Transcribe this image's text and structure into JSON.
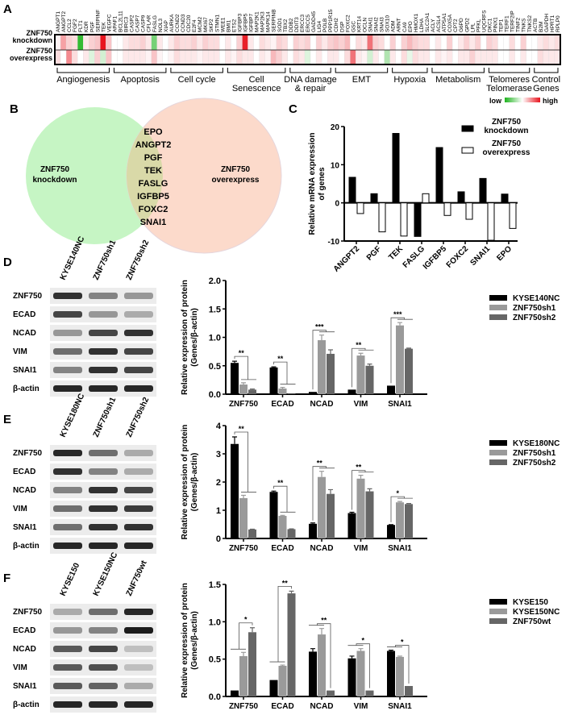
{
  "panels": {
    "a": "A",
    "b": "B",
    "c": "C",
    "d": "D",
    "e": "E",
    "f": "F"
  },
  "heatmap": {
    "row_label_lines": [
      [
        "ZNF750",
        "knockdown"
      ],
      [
        "ZNF750",
        "overexpress"
      ]
    ],
    "genes": [
      "ANGPT1",
      "ANGPT2",
      "CCL2",
      "FGF2",
      "FLT1",
      "KDR",
      "PGF",
      "SERPINF",
      "TEK",
      "VEGFC",
      "APAF1",
      "BCL2L11",
      "BIRC3",
      "CASP2",
      "CASP7",
      "CASP9",
      "CFLAR",
      "FASLG",
      "NOL3",
      "XIAP",
      "AURKA",
      "CCND2",
      "CCND3",
      "CDC20",
      "E2F4",
      "MCM2",
      "MKI67",
      "SKP2",
      "STMN1",
      "WEE1",
      "BMI1",
      "ETS2",
      "IGFBP3",
      "IGFBP5",
      "IGFBP7",
      "MAP2K1",
      "MAP2K3",
      "MAPK14",
      "SERPINB",
      "SOD1",
      "TBX2",
      "DDB2",
      "DDIT3",
      "ERCC3",
      "ERCC5",
      "GADD45",
      "LIG4",
      "POLB",
      "PPP1R15",
      "CDH2",
      "DSP",
      "FOXC2",
      "GSC",
      "KRT14",
      "OCLN",
      "SNAI1",
      "SNAI2",
      "SNAI3",
      "SOX10",
      "ADM",
      "ARNT",
      "CA9",
      "EPO",
      "HMOX1",
      "LDHA",
      "SLC2A1",
      "ACLY",
      "ACSL4",
      "ATP5A1",
      "COX5A",
      "CPT2",
      "G6PD",
      "GPD2",
      "LPL",
      "PFKL",
      "UQCRFS",
      "DKC1",
      "PINX1",
      "TEP1",
      "TERF1",
      "TERF2IP",
      "TINF2",
      "TNKS",
      "TNKS2",
      "ACTB",
      "B2M",
      "GAPDH",
      "HPRT1",
      "RPLP0"
    ],
    "values": [
      [
        0.05,
        0.4,
        0.2,
        0.15,
        -0.9,
        0.1,
        0.2,
        0.25,
        1.0,
        0.25,
        0.0,
        0.0,
        0.1,
        0.15,
        0.15,
        0.2,
        0.1,
        -0.6,
        0.1,
        0.0,
        0.1,
        0.2,
        0.15,
        0.15,
        0.2,
        0.1,
        0.2,
        0.15,
        0.15,
        0.0,
        0.1,
        0.0,
        0.2,
        0.95,
        0.1,
        0.0,
        0.15,
        0.1,
        0.05,
        0.2,
        0.15,
        0.0,
        0.2,
        0.15,
        0.2,
        0.0,
        0.2,
        0.1,
        0.2,
        0.25,
        0.2,
        0.3,
        0.0,
        0.15,
        0.1,
        0.6,
        0.2,
        0.15,
        0.0,
        0.2,
        0.0,
        0.2,
        0.3,
        0.2,
        0.15,
        0.15,
        0.0,
        0.1,
        0.0,
        0.2,
        0.0,
        0.1,
        0.2,
        0.1,
        0.2,
        0.0,
        0.2,
        0.15,
        0.0,
        0.0,
        0.15,
        0.0,
        0.2,
        0.0,
        0.0,
        0.1,
        0.15,
        0.1,
        0.15
      ],
      [
        0.15,
        0.0,
        0.5,
        0.15,
        0.0,
        0.1,
        -0.15,
        0.2,
        -0.2,
        0.25,
        0.0,
        0.0,
        0.1,
        0.1,
        0.1,
        0.1,
        0.05,
        0.25,
        0.05,
        0.0,
        0.05,
        0.15,
        0.1,
        0.1,
        0.1,
        0.05,
        0.1,
        0.1,
        0.1,
        0.0,
        0.1,
        0.05,
        0.15,
        0.1,
        0.1,
        0.0,
        0.1,
        0.05,
        0.3,
        0.2,
        0.1,
        0.0,
        0.15,
        0.1,
        -0.15,
        0.0,
        0.1,
        0.0,
        0.1,
        0.1,
        0.0,
        0.15,
        0.6,
        0.1,
        0.05,
        -0.2,
        0.1,
        0.0,
        -0.35,
        0.1,
        0.0,
        0.15,
        -0.1,
        0.15,
        0.1,
        0.1,
        0.0,
        0.1,
        0.05,
        0.1,
        0.0,
        0.1,
        0.1,
        0.2,
        0.1,
        0.1,
        0.1,
        0.1,
        0.0,
        0.0,
        0.1,
        0.0,
        0.1,
        0.0,
        0.0,
        0.15,
        0.1,
        0.1,
        0.1
      ]
    ],
    "groups": [
      {
        "label": [
          "Angiogenesis"
        ],
        "count": 10
      },
      {
        "label": [
          "Apoptosis"
        ],
        "count": 10
      },
      {
        "label": [
          "Cell cycle"
        ],
        "count": 10
      },
      {
        "label": [
          "Cell",
          "Senescence"
        ],
        "count": 11
      },
      {
        "label": [
          "DNA damage",
          "& repair"
        ],
        "count": 8
      },
      {
        "label": [
          "EMT"
        ],
        "count": 10
      },
      {
        "label": [
          "Hypoxia"
        ],
        "count": 7
      },
      {
        "label": [
          "Metabolism"
        ],
        "count": 10
      },
      {
        "label": [
          "Telomeres",
          "Telomerase"
        ],
        "count": 8
      },
      {
        "label": [
          "Control",
          "Genes"
        ],
        "count": 5
      }
    ],
    "scale_low": "low",
    "scale_high": "high",
    "colors": {
      "low": "#1db31d",
      "mid": "#ffffff",
      "high": "#e8141e"
    }
  },
  "venn": {
    "left_label": [
      "ZNF750",
      "knockdown"
    ],
    "right_label": [
      "ZNF750",
      "overexpress"
    ],
    "overlap": [
      "EPO",
      "ANGPT2",
      "PGF",
      "TEK",
      "FASLG",
      "IGFBP5",
      "FOXC2",
      "SNAI1"
    ],
    "colors": {
      "left": "#c6f5c4",
      "right": "#fbd3c2",
      "overlap": "#d9d9a8"
    }
  },
  "chart_data": [
    {
      "type": "bar",
      "ylabel": [
        "Relative mRNA expression",
        "of genes"
      ],
      "categories": [
        "ANGPT2",
        "PGF",
        "TEK",
        "FASLG",
        "IGFBP5",
        "FOXC2",
        "SNAI1",
        "EPO"
      ],
      "ylim": [
        -10,
        20
      ],
      "yticks": [
        "-10",
        "0",
        "10",
        "20"
      ],
      "yticks_values": [
        -10,
        0,
        10,
        20
      ],
      "legend_placement": "top-right",
      "series": [
        {
          "name": [
            "ZNF750",
            "knockdown"
          ],
          "color": "#000000",
          "values": [
            6.7,
            2.4,
            18.2,
            -8.8,
            14.5,
            2.9,
            6.4,
            2.3
          ]
        },
        {
          "name": [
            "ZNF750",
            "overexpress"
          ],
          "color": "#ffffff",
          "values": [
            -2.8,
            -7.6,
            -8.7,
            2.4,
            -3.3,
            -4.3,
            -9.8,
            -6.7
          ]
        }
      ]
    },
    {
      "type": "bar",
      "ylabel": [
        "Relative expression of  protein",
        "(Genes/β-actin)"
      ],
      "categories": [
        "ZNF750",
        "ECAD",
        "NCAD",
        "VIM",
        "SNAI1"
      ],
      "ylim": [
        0,
        2.0
      ],
      "yticks": [
        "0.0",
        "0.5",
        "1.0",
        "1.5",
        "2.0"
      ],
      "yticks_values": [
        0,
        0.5,
        1.0,
        1.5,
        2.0
      ],
      "legend_placement": "right",
      "significance": [
        "**",
        "**",
        "***",
        "**",
        "***"
      ],
      "series": [
        {
          "name": "KYSE140NC",
          "color": "#000000",
          "values": [
            0.55,
            0.47,
            0.04,
            0.08,
            0.15
          ],
          "errors": [
            0.03,
            0.01,
            0.0,
            0.0,
            0.0
          ]
        },
        {
          "name": "ZNF750sh1",
          "color": "#9a9a9a",
          "values": [
            0.17,
            0.1,
            0.95,
            0.68,
            1.21
          ],
          "errors": [
            0.03,
            0.02,
            0.09,
            0.04,
            0.05
          ]
        },
        {
          "name": "ZNF750sh2",
          "color": "#666666",
          "values": [
            0.08,
            0.01,
            0.71,
            0.5,
            0.8
          ],
          "errors": [
            0.01,
            0.0,
            0.07,
            0.03,
            0.01
          ]
        }
      ],
      "blot": {
        "lanes": [
          "KYSE140NC",
          "ZNF750sh1",
          "ZNF750sh2"
        ],
        "rows": [
          "ZNF750",
          "ECAD",
          "NCAD",
          "VIM",
          "SNAI1",
          "β-actin"
        ]
      }
    },
    {
      "type": "bar",
      "ylabel": [
        "Relative expression of  protein",
        "(Genes/β-actin)"
      ],
      "categories": [
        "ZNF750",
        "ECAD",
        "NCAD",
        "VIM",
        "SNAI1"
      ],
      "ylim": [
        0,
        4
      ],
      "yticks": [
        "0",
        "1",
        "2",
        "3",
        "4"
      ],
      "yticks_values": [
        0,
        1,
        2,
        3,
        4
      ],
      "legend_placement": "right",
      "significance": [
        "**",
        "**",
        "**",
        "**",
        "*"
      ],
      "series": [
        {
          "name": "KYSE180NC",
          "color": "#000000",
          "values": [
            3.35,
            1.65,
            0.52,
            0.9,
            0.48
          ],
          "errors": [
            0.25,
            0.03,
            0.03,
            0.03,
            0.01
          ]
        },
        {
          "name": "ZNF750sh1",
          "color": "#9a9a9a",
          "values": [
            1.43,
            0.8,
            2.18,
            2.12,
            1.28
          ],
          "errors": [
            0.1,
            0.02,
            0.2,
            0.12,
            0.03
          ]
        },
        {
          "name": "ZNF750sh2",
          "color": "#666666",
          "values": [
            0.32,
            0.33,
            1.58,
            1.67,
            1.22
          ],
          "errors": [
            0.01,
            0.01,
            0.15,
            0.09,
            0.02
          ]
        }
      ],
      "blot": {
        "lanes": [
          "KYSE180NC",
          "ZNF750sh1",
          "ZNF750sh2"
        ],
        "rows": [
          "ZNF750",
          "ECAD",
          "NCAD",
          "VIM",
          "SNAI1",
          "β-actin"
        ]
      }
    },
    {
      "type": "bar",
      "ylabel": [
        "Relative expression of  protein",
        "(Genes/β-actin)"
      ],
      "categories": [
        "ZNF750",
        "ECAD",
        "NCAD",
        "VIM",
        "SNAI1"
      ],
      "ylim": [
        0,
        1.5
      ],
      "yticks": [
        "0.0",
        "0.5",
        "1.0",
        "1.5"
      ],
      "yticks_values": [
        0,
        0.5,
        1.0,
        1.5
      ],
      "legend_placement": "right",
      "significance": [
        "*",
        "**",
        "**",
        "*",
        "*"
      ],
      "series": [
        {
          "name": "KYSE150",
          "color": "#000000",
          "values": [
            0.08,
            0.22,
            0.6,
            0.51,
            0.61
          ],
          "errors": [
            0.0,
            0.0,
            0.04,
            0.03,
            0.01
          ]
        },
        {
          "name": "KYSE150NC",
          "color": "#9a9a9a",
          "values": [
            0.54,
            0.41,
            0.83,
            0.61,
            0.53
          ],
          "errors": [
            0.05,
            0.01,
            0.08,
            0.03,
            0.01
          ]
        },
        {
          "name": "ZNF750wt",
          "color": "#666666",
          "values": [
            0.86,
            1.38,
            0.08,
            0.08,
            0.14
          ],
          "errors": [
            0.06,
            0.03,
            0.0,
            0.0,
            0.0
          ]
        }
      ],
      "blot": {
        "lanes": [
          "KYSE150",
          "KYSE150NC",
          "ZNF750wt"
        ],
        "rows": [
          "ZNF750",
          "ECAD",
          "NCAD",
          "VIM",
          "SNAI1",
          "β-actin"
        ]
      }
    }
  ]
}
